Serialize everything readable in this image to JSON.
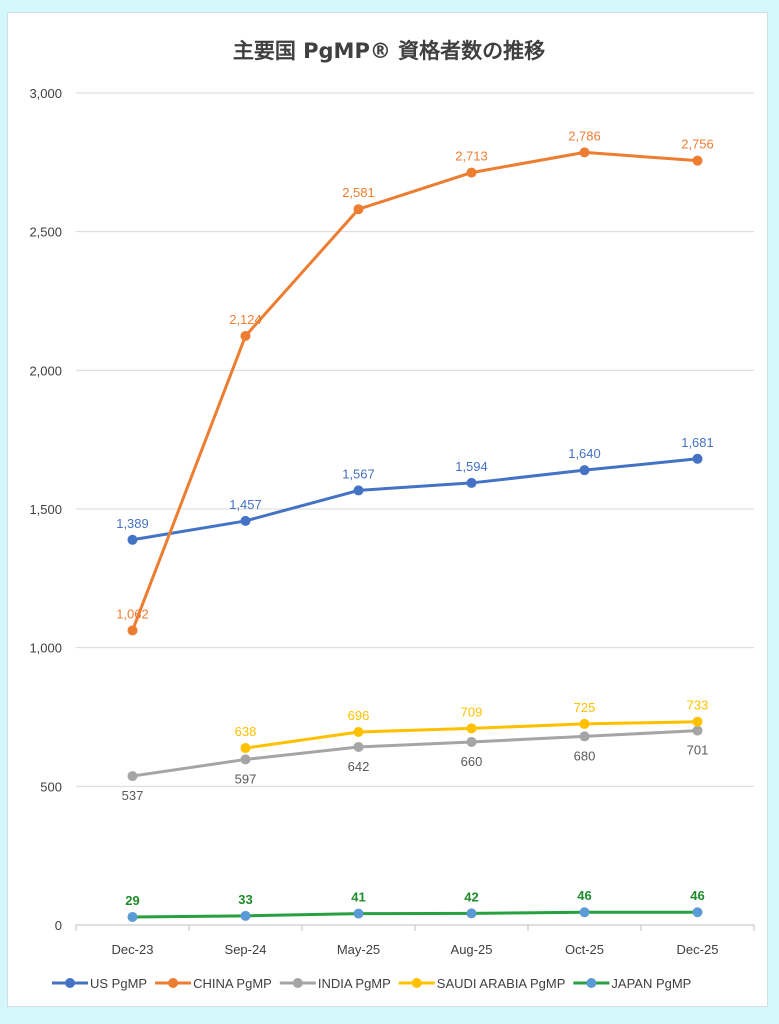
{
  "chart_data": {
    "type": "line",
    "title": "主要国 PgMP® 資格者数の推移",
    "xlabel": "",
    "ylabel": "",
    "ylim": [
      0,
      3000
    ],
    "yticks": [
      "0",
      "500",
      "1,000",
      "1,500",
      "2,000",
      "2,500",
      "3,000"
    ],
    "ytick_values": [
      0,
      500,
      1000,
      1500,
      2000,
      2500,
      3000
    ],
    "grid": true,
    "legend_position": "bottom",
    "categories": [
      "Dec-23",
      "Sep-24",
      "May-25",
      "Aug-25",
      "Oct-25",
      "Dec-25"
    ],
    "series": [
      {
        "name": "US PgMP",
        "color": "#4472c4",
        "marker_color": "#4472c4",
        "label_color": "#4472c4",
        "label_pos": "above",
        "values": [
          1389,
          1457,
          1567,
          1594,
          1640,
          1681
        ],
        "labels": [
          "1,389",
          "1,457",
          "1,567",
          "1,594",
          "1,640",
          "1,681"
        ]
      },
      {
        "name": "CHINA PgMP",
        "color": "#ed7d31",
        "marker_color": "#ed7d31",
        "label_color": "#ed7d31",
        "label_pos": "above",
        "values": [
          1062,
          2124,
          2581,
          2713,
          2786,
          2756
        ],
        "labels": [
          "1,062",
          "2,124",
          "2,581",
          "2,713",
          "2,786",
          "2,756"
        ]
      },
      {
        "name": "INDIA PgMP",
        "color": "#a5a5a5",
        "marker_color": "#a5a5a5",
        "label_color": "#595959",
        "label_pos": "below",
        "values": [
          537,
          597,
          642,
          660,
          680,
          701
        ],
        "labels": [
          "537",
          "597",
          "642",
          "660",
          "680",
          "701"
        ]
      },
      {
        "name": "SAUDI ARABIA PgMP",
        "color": "#ffc000",
        "marker_color": "#ffc000",
        "label_color": "#ffc000",
        "label_pos": "above",
        "values": [
          null,
          638,
          696,
          709,
          725,
          733
        ],
        "labels": [
          null,
          "638",
          "696",
          "709",
          "725",
          "733"
        ]
      },
      {
        "name": "JAPAN PgMP",
        "color": "#27a040",
        "marker_color": "#5b9bd5",
        "label_color": "#1e8c2a",
        "label_pos": "above",
        "values": [
          29,
          33,
          41,
          42,
          46,
          46
        ],
        "labels": [
          "29",
          "33",
          "41",
          "42",
          "46",
          "46"
        ]
      }
    ]
  }
}
